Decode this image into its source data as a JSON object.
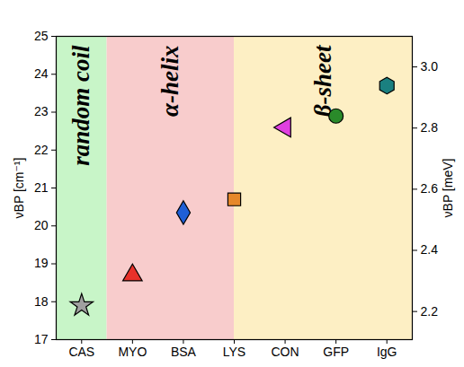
{
  "chart_data": {
    "type": "scatter",
    "categories": [
      "CAS",
      "MYO",
      "BSA",
      "LYS",
      "CON",
      "GFP",
      "IgG"
    ],
    "values": [
      17.9,
      18.7,
      20.35,
      20.7,
      22.6,
      22.9,
      23.7
    ],
    "colors": [
      "#a0a0a0",
      "#e8312a",
      "#1f5fd6",
      "#e6882a",
      "#e040e0",
      "#2a8a2a",
      "#1a8080"
    ],
    "markers": [
      "star",
      "triangle",
      "diamond",
      "square",
      "triangle_left",
      "circle",
      "hexagon"
    ],
    "ylabel": "νBP [cm⁻¹]",
    "ylim": [
      17,
      25
    ],
    "yticks": [
      17,
      18,
      19,
      20,
      21,
      22,
      23,
      24,
      25
    ],
    "y2label": "νBP [meV]",
    "y2lim": [
      2.108,
      3.1
    ],
    "y2ticks": [
      2.2,
      2.4,
      2.6,
      2.8,
      {
        "value": 3,
        "label": "3.0"
      }
    ],
    "regions": [
      {
        "label": "random coil",
        "from": -0.5,
        "to": 0.5,
        "color": "#c8f5c8"
      },
      {
        "label": "α-helix",
        "from": 0.5,
        "to": 3,
        "color": "#f8cccc"
      },
      {
        "label": "β-sheet",
        "from": 3,
        "to": 6.5,
        "color": "#fdefc4"
      }
    ]
  }
}
